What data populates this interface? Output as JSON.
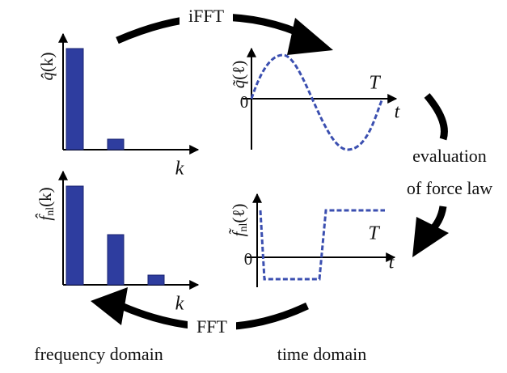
{
  "transforms": {
    "ifft": "iFFT",
    "fft": "FFT"
  },
  "evaluation": {
    "line1": "evaluation",
    "line2": "of force law"
  },
  "domains": {
    "frequency": "frequency domain",
    "time": "time domain"
  },
  "plots": {
    "q_hat": {
      "head": "q̂",
      "arg": "(k)",
      "x_label": "k"
    },
    "q_tilde": {
      "head": "q̃",
      "arg": "(ℓ)",
      "period": "T",
      "x_label": "t",
      "origin": "0"
    },
    "f_hat": {
      "head": "f̂",
      "sub": "nl",
      "arg": "(k)",
      "x_label": "k"
    },
    "f_tilde": {
      "head": "f̃",
      "sub": "nl",
      "arg": "(ℓ)",
      "period": "T",
      "x_label": "t",
      "origin": "0"
    }
  }
}
